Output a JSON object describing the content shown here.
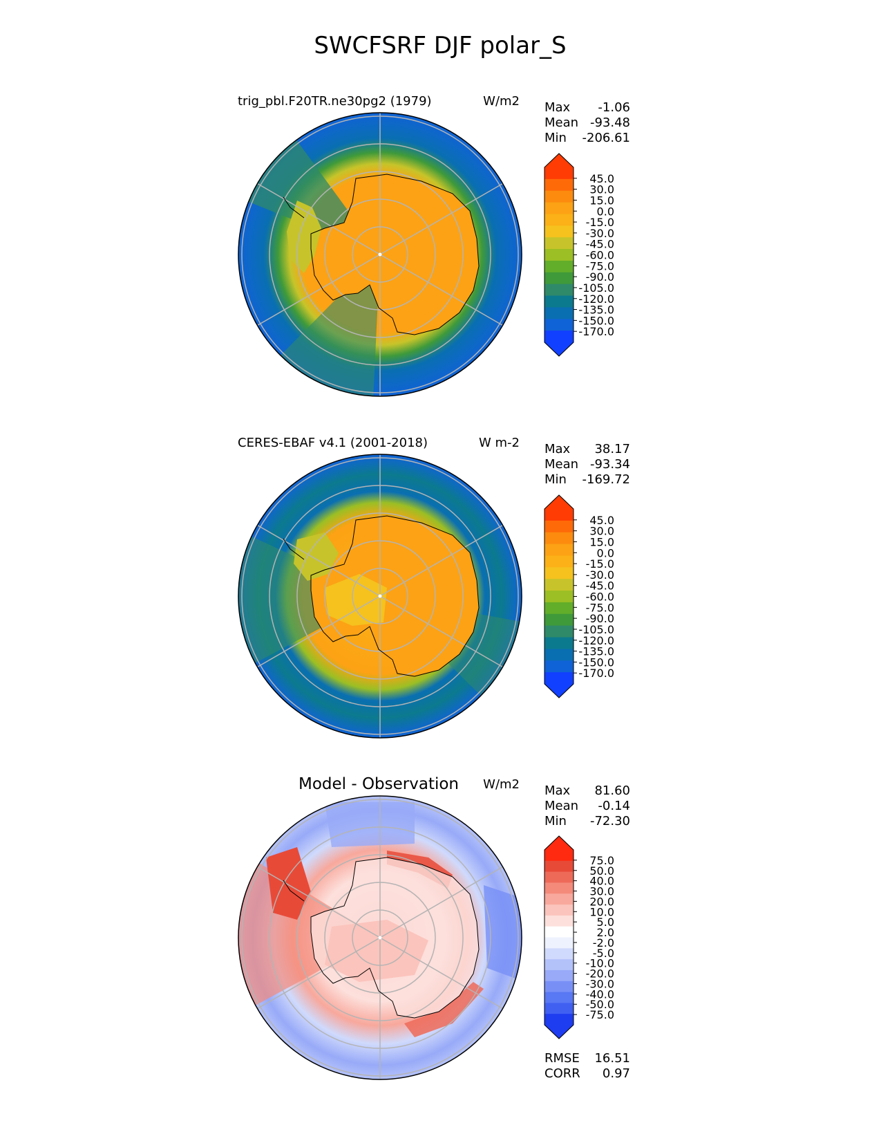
{
  "figure": {
    "title": "SWCFSRF DJF polar_S"
  },
  "colors": {
    "main_levels": [
      "#1240ff",
      "#0f63d6",
      "#0a6fb1",
      "#0c7a8e",
      "#2f8a6a",
      "#3f9a3a",
      "#62ae2a",
      "#9bbf24",
      "#c6c42a",
      "#f5c21e",
      "#fbb117",
      "#fca214",
      "#fc8b0e",
      "#ff6a08",
      "#ff3c03"
    ],
    "diff_levels": [
      "#1e3cf0",
      "#4060f2",
      "#5878f4",
      "#7890f6",
      "#98aaf8",
      "#b4c2fa",
      "#d0dafc",
      "#eef2ff",
      "#ffffff",
      "#fde0dc",
      "#fbc4bc",
      "#f8a89c",
      "#f48a7a",
      "#ee6a58",
      "#e84a38",
      "#ff2a10"
    ],
    "land_outline": "#000000",
    "grid": "#b4b4b4"
  },
  "chart_data": [
    {
      "type": "heatmap",
      "projection": "south-polar-stereographic",
      "title": "trig_pbl.F20TR.ne30pg2 (1979)",
      "units": "W/m2",
      "stats": {
        "max_label": "Max",
        "max": "-1.06",
        "mean_label": "Mean",
        "mean": "-93.48",
        "min_label": "Min",
        "min": "-206.61"
      },
      "colorbar_ticks": [
        "45.0",
        "30.0",
        "15.0",
        "0.0",
        "-15.0",
        "-30.0",
        "-45.0",
        "-60.0",
        "-75.0",
        "-90.0",
        "-105.0",
        "-120.0",
        "-135.0",
        "-150.0",
        "-170.0"
      ],
      "field": {
        "continent": -25,
        "coast_ring": -75,
        "mid_ring": -135,
        "outer_ring": -160
      }
    },
    {
      "type": "heatmap",
      "projection": "south-polar-stereographic",
      "title": "CERES-EBAF v4.1 (2001-2018)",
      "units": "W m-2",
      "stats": {
        "max_label": "Max",
        "max": "38.17",
        "mean_label": "Mean",
        "mean": "-93.34",
        "min_label": "Min",
        "min": "-169.72"
      },
      "colorbar_ticks": [
        "45.0",
        "30.0",
        "15.0",
        "0.0",
        "-15.0",
        "-30.0",
        "-45.0",
        "-60.0",
        "-75.0",
        "-90.0",
        "-105.0",
        "-120.0",
        "-135.0",
        "-150.0",
        "-170.0"
      ],
      "field": {
        "continent": -30,
        "coast_ring": -90,
        "mid_ring": -140,
        "outer_ring": -160
      }
    },
    {
      "type": "heatmap",
      "projection": "south-polar-stereographic",
      "title": "Model - Observation",
      "units": "W/m2",
      "stats": {
        "max_label": "Max",
        "max": "81.60",
        "mean_label": "Mean",
        "mean": "-0.14",
        "min_label": "Min",
        "min": "-72.30"
      },
      "colorbar_ticks": [
        "75.0",
        "50.0",
        "40.0",
        "30.0",
        "20.0",
        "10.0",
        "5.0",
        "2.0",
        "-2.0",
        "-5.0",
        "-10.0",
        "-20.0",
        "-30.0",
        "-40.0",
        "-50.0",
        "-75.0"
      ],
      "metrics": {
        "rmse_label": "RMSE",
        "rmse": "16.51",
        "corr_label": "CORR",
        "corr": "0.97"
      }
    }
  ]
}
